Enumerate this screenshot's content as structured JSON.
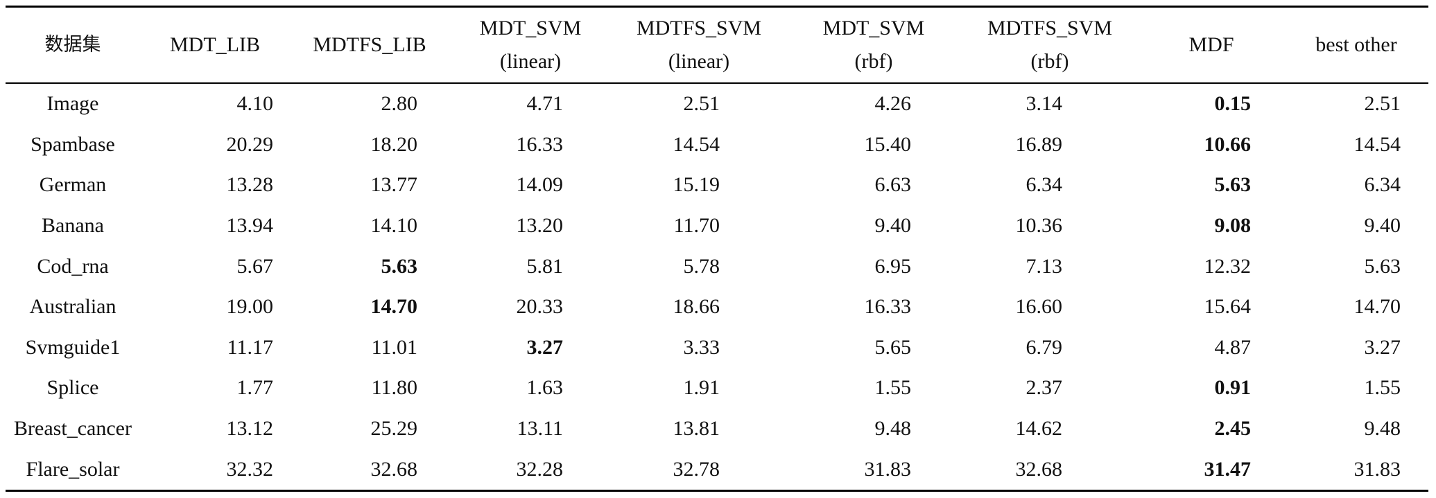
{
  "columns": [
    {
      "lines": [
        "数据集"
      ]
    },
    {
      "lines": [
        "MDT_LIB"
      ]
    },
    {
      "lines": [
        "MDTFS_LIB"
      ]
    },
    {
      "lines": [
        "MDT_SVM",
        "(linear)"
      ]
    },
    {
      "lines": [
        "MDTFS_SVM",
        "(linear)"
      ]
    },
    {
      "lines": [
        "MDT_SVM",
        "(rbf)"
      ]
    },
    {
      "lines": [
        "MDTFS_SVM",
        "(rbf)"
      ]
    },
    {
      "lines": [
        "MDF"
      ]
    },
    {
      "lines": [
        "best other"
      ]
    }
  ],
  "rows": [
    {
      "name": "Image",
      "values": [
        "4.10",
        "2.80",
        "4.71",
        "2.51",
        "4.26",
        "3.14",
        "0.15",
        "2.51"
      ],
      "bold_index": 6
    },
    {
      "name": "Spambase",
      "values": [
        "20.29",
        "18.20",
        "16.33",
        "14.54",
        "15.40",
        "16.89",
        "10.66",
        "14.54"
      ],
      "bold_index": 6
    },
    {
      "name": "German",
      "values": [
        "13.28",
        "13.77",
        "14.09",
        "15.19",
        "6.63",
        "6.34",
        "5.63",
        "6.34"
      ],
      "bold_index": 6
    },
    {
      "name": "Banana",
      "values": [
        "13.94",
        "14.10",
        "13.20",
        "11.70",
        "9.40",
        "10.36",
        "9.08",
        "9.40"
      ],
      "bold_index": 6
    },
    {
      "name": "Cod_rna",
      "values": [
        "5.67",
        "5.63",
        "5.81",
        "5.78",
        "6.95",
        "7.13",
        "12.32",
        "5.63"
      ],
      "bold_index": 1
    },
    {
      "name": "Australian",
      "values": [
        "19.00",
        "14.70",
        "20.33",
        "18.66",
        "16.33",
        "16.60",
        "15.64",
        "14.70"
      ],
      "bold_index": 1
    },
    {
      "name": "Svmguide1",
      "values": [
        "11.17",
        "11.01",
        "3.27",
        "3.33",
        "5.65",
        "6.79",
        "4.87",
        "3.27"
      ],
      "bold_index": 2
    },
    {
      "name": "Splice",
      "values": [
        "1.77",
        "11.80",
        "1.63",
        "1.91",
        "1.55",
        "2.37",
        "0.91",
        "1.55"
      ],
      "bold_index": 6
    },
    {
      "name": "Breast_cancer",
      "values": [
        "13.12",
        "25.29",
        "13.11",
        "13.81",
        "9.48",
        "14.62",
        "2.45",
        "9.48"
      ],
      "bold_index": 6
    },
    {
      "name": "Flare_solar",
      "values": [
        "32.32",
        "32.68",
        "32.28",
        "32.78",
        "31.83",
        "32.68",
        "31.47",
        "31.83"
      ],
      "bold_index": 6
    }
  ]
}
